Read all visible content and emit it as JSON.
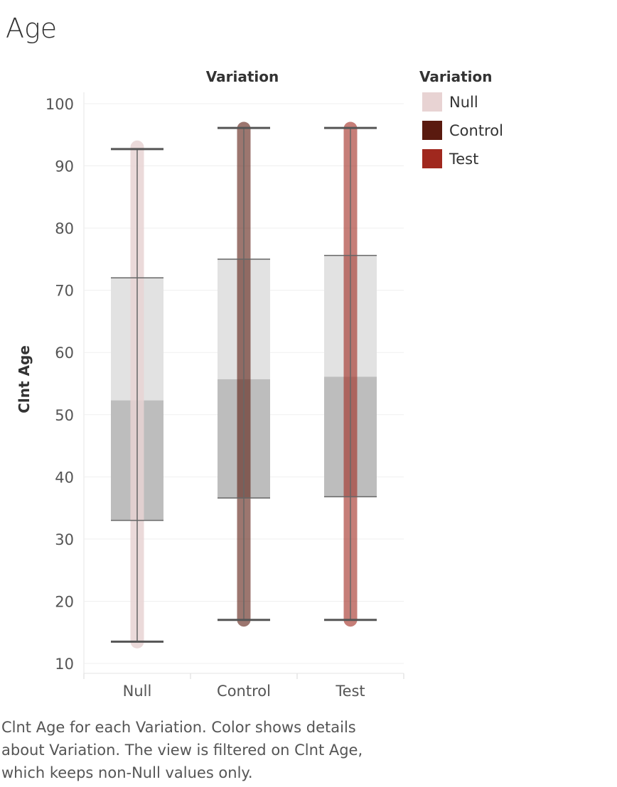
{
  "title": "Age",
  "caption": [
    "Clnt Age for each Variation.  Color shows details",
    "about Variation. The view is filtered on Clnt Age,",
    "which keeps non-Null values only."
  ],
  "chart_data": {
    "type": "boxplot",
    "column_header": "Variation",
    "ylabel": "Clnt Age",
    "ylim": [
      9,
      101
    ],
    "yticks": [
      10,
      20,
      30,
      40,
      50,
      60,
      70,
      80,
      90,
      100
    ],
    "categories": [
      "Null",
      "Control",
      "Test"
    ],
    "series": [
      {
        "name": "Null",
        "color": "#e8d3d3",
        "whisker_low": 13.5,
        "q1": 33,
        "median": 52.3,
        "q3": 72,
        "whisker_high": 92.7,
        "points_range": [
          13.5,
          93
        ]
      },
      {
        "name": "Control",
        "color": "#5a1a0f",
        "whisker_low": 17,
        "q1": 36.6,
        "median": 55.7,
        "q3": 75,
        "whisker_high": 96.1,
        "points_range": [
          17,
          96
        ]
      },
      {
        "name": "Test",
        "color": "#a0281e",
        "whisker_low": 17,
        "q1": 36.8,
        "median": 56.1,
        "q3": 75.6,
        "whisker_high": 96.1,
        "points_range": [
          17,
          96
        ]
      }
    ],
    "legend": {
      "title": "Variation",
      "position": "top-right",
      "items": [
        {
          "label": "Null",
          "color": "#e8d3d3"
        },
        {
          "label": "Control",
          "color": "#5a1a0f"
        },
        {
          "label": "Test",
          "color": "#a0281e"
        }
      ]
    }
  }
}
